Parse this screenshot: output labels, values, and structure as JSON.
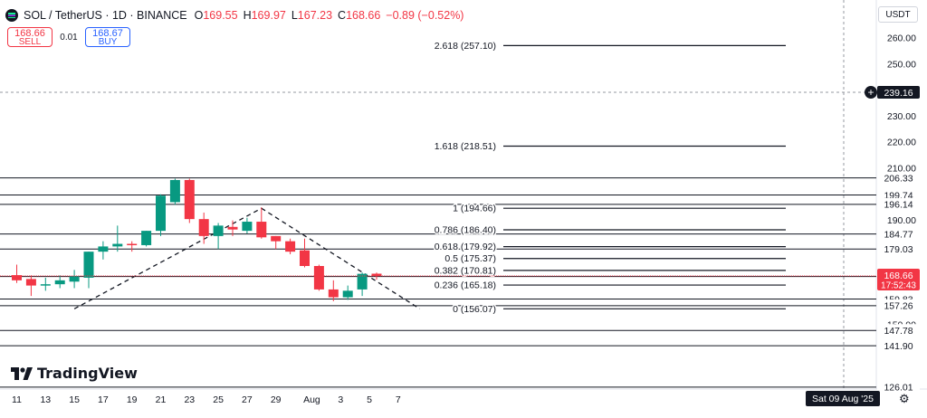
{
  "header": {
    "symbol": "SOL / TetherUS · 1D · BINANCE",
    "open_label": "O",
    "open": "169.55",
    "high_label": "H",
    "high": "169.97",
    "low_label": "L",
    "low": "167.23",
    "close_label": "C",
    "close": "168.66",
    "change": "−0.89 (−0.52%)"
  },
  "trade": {
    "sell_price": "168.66",
    "sell_label": "SELL",
    "spread": "0.01",
    "buy_price": "168.67",
    "buy_label": "BUY"
  },
  "currency": "USDT",
  "logo": "TradingView",
  "colors": {
    "up": "#089981",
    "down": "#f23645",
    "line": "#131722"
  },
  "chart_data": {
    "type": "candlestick",
    "x_ticks": [
      "11",
      "13",
      "15",
      "17",
      "19",
      "21",
      "23",
      "25",
      "27",
      "29",
      "Aug",
      "3",
      "5",
      "7"
    ],
    "y_ticks": [
      "260.00",
      "250.00",
      "240.00",
      "230.00",
      "220.00",
      "210.00",
      "200.00",
      "190.00",
      "180.00",
      "170.00",
      "160.00",
      "150.00"
    ],
    "ylim": [
      122,
      265
    ],
    "candles": [
      {
        "x": "Jul 10",
        "o": 169.0,
        "h": 173.0,
        "l": 166.0,
        "c": 167.0
      },
      {
        "x": "Jul 11",
        "o": 167.5,
        "h": 169.0,
        "l": 161.0,
        "c": 165.0
      },
      {
        "x": "Jul 12",
        "o": 165.0,
        "h": 168.0,
        "l": 163.0,
        "c": 165.5
      },
      {
        "x": "Jul 13",
        "o": 165.5,
        "h": 169.0,
        "l": 164.0,
        "c": 167.0
      },
      {
        "x": "Jul 14",
        "o": 166.5,
        "h": 171.0,
        "l": 164.0,
        "c": 168.5
      },
      {
        "x": "Jul 15",
        "o": 168.0,
        "h": 178.0,
        "l": 164.0,
        "c": 178.0
      },
      {
        "x": "Jul 16",
        "o": 178.0,
        "h": 182.0,
        "l": 175.0,
        "c": 180.0
      },
      {
        "x": "Jul 17",
        "o": 180.0,
        "h": 188.0,
        "l": 178.0,
        "c": 181.0
      },
      {
        "x": "Jul 18",
        "o": 181.0,
        "h": 182.0,
        "l": 178.0,
        "c": 180.5
      },
      {
        "x": "Jul 19",
        "o": 180.5,
        "h": 186.0,
        "l": 180.0,
        "c": 186.0
      },
      {
        "x": "Jul 20",
        "o": 186.0,
        "h": 200.0,
        "l": 184.0,
        "c": 199.5
      },
      {
        "x": "Jul 21",
        "o": 197.0,
        "h": 206.0,
        "l": 196.0,
        "c": 205.5
      },
      {
        "x": "Jul 22",
        "o": 205.5,
        "h": 206.0,
        "l": 189.0,
        "c": 190.5
      },
      {
        "x": "Jul 23",
        "o": 190.5,
        "h": 193.0,
        "l": 181.0,
        "c": 184.0
      },
      {
        "x": "Jul 24",
        "o": 184.0,
        "h": 189.0,
        "l": 179.0,
        "c": 188.0
      },
      {
        "x": "Jul 25",
        "o": 187.5,
        "h": 190.0,
        "l": 184.0,
        "c": 186.5
      },
      {
        "x": "Jul 26",
        "o": 186.0,
        "h": 191.0,
        "l": 185.0,
        "c": 189.5
      },
      {
        "x": "Jul 27",
        "o": 189.5,
        "h": 195.0,
        "l": 183.0,
        "c": 183.5
      },
      {
        "x": "Jul 28",
        "o": 184.0,
        "h": 184.0,
        "l": 179.0,
        "c": 182.0
      },
      {
        "x": "Jul 29",
        "o": 182.0,
        "h": 183.0,
        "l": 177.0,
        "c": 178.0
      },
      {
        "x": "Jul 30",
        "o": 178.5,
        "h": 183.0,
        "l": 172.0,
        "c": 172.5
      },
      {
        "x": "Jul 31",
        "o": 172.5,
        "h": 173.0,
        "l": 163.0,
        "c": 163.5
      },
      {
        "x": "Aug 1",
        "o": 163.5,
        "h": 167.0,
        "l": 159.0,
        "c": 160.5
      },
      {
        "x": "Aug 2",
        "o": 160.5,
        "h": 165.0,
        "l": 159.5,
        "c": 163.0
      },
      {
        "x": "Aug 3",
        "o": 163.5,
        "h": 170.0,
        "l": 161.0,
        "c": 169.5
      },
      {
        "x": "Aug 4",
        "o": 169.55,
        "h": 169.97,
        "l": 167.23,
        "c": 168.66
      }
    ],
    "fib_levels": [
      {
        "label": "2.618 (257.10)",
        "value": 257.1
      },
      {
        "label": "1.618 (218.51)",
        "value": 218.51
      },
      {
        "label": "1 (194.66)",
        "value": 194.66
      },
      {
        "label": "0.786 (186.40)",
        "value": 186.4
      },
      {
        "label": "0.618 (179.92)",
        "value": 179.92
      },
      {
        "label": "0.5 (175.37)",
        "value": 175.37
      },
      {
        "label": "0.382 (170.81)",
        "value": 170.81
      },
      {
        "label": "0.236 (165.18)",
        "value": 165.18
      },
      {
        "label": "0 (156.07)",
        "value": 156.07
      }
    ],
    "horizontal_levels": [
      {
        "label": "206.33",
        "value": 206.33
      },
      {
        "label": "199.74",
        "value": 199.74
      },
      {
        "label": "196.14",
        "value": 196.14
      },
      {
        "label": "184.77",
        "value": 184.77
      },
      {
        "label": "179.03",
        "value": 179.03
      },
      {
        "label": "168.48",
        "value": 168.48
      },
      {
        "label": "159.83",
        "value": 159.83
      },
      {
        "label": "157.26",
        "value": 157.26
      },
      {
        "label": "147.78",
        "value": 147.78
      },
      {
        "label": "141.90",
        "value": 141.9
      },
      {
        "label": "126.01",
        "value": 126.01
      }
    ],
    "crosshair": {
      "price": "239.16",
      "date": "Sat 09 Aug '25"
    },
    "last_price": {
      "price": "168.66",
      "countdown": "17:52:43"
    },
    "trendlines": [
      {
        "from": [
          "Jul 14",
          156.07
        ],
        "to": [
          "Jul 27",
          194.66
        ]
      },
      {
        "from": [
          "Jul 27",
          194.66
        ],
        "to": [
          "Aug 7",
          156.07
        ]
      }
    ]
  }
}
